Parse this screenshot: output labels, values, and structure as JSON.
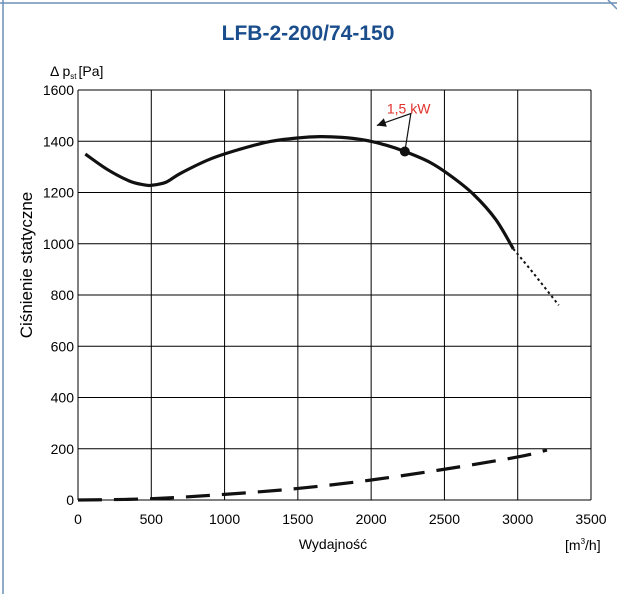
{
  "colors": {
    "title": "#1a4d8c",
    "frame_line": "#6b8fb5",
    "annotation": "#e0312b",
    "curve": "#111111",
    "grid": "#000000"
  },
  "chart_data": {
    "type": "line",
    "title": "LFB-2-200/74-150",
    "ylabel": "Ciśnienie statyczne",
    "ylabel_unit": {
      "prefix": "Δ p",
      "sub": "st",
      "suffix": "[Pa]"
    },
    "xlabel": "Wydajność",
    "xlabel_unit": {
      "prefix": "[m",
      "sup": "3",
      "suffix": "/h]"
    },
    "xlim": [
      0,
      3500
    ],
    "ylim": [
      0,
      1600
    ],
    "x_ticks": [
      0,
      500,
      1000,
      1500,
      2000,
      2500,
      3000,
      3500
    ],
    "y_ticks": [
      0,
      200,
      400,
      600,
      800,
      1000,
      1200,
      1400,
      1600
    ],
    "grid": true,
    "series": [
      {
        "style": "solid-thick",
        "x": [
          50,
          200,
          350,
          450,
          500,
          600,
          700,
          900,
          1100,
          1300,
          1500,
          1650,
          1800,
          1950,
          2100,
          2230,
          2400,
          2550,
          2700,
          2850,
          2970
        ],
        "y": [
          1350,
          1290,
          1245,
          1230,
          1228,
          1240,
          1275,
          1330,
          1368,
          1398,
          1413,
          1418,
          1415,
          1405,
          1385,
          1360,
          1318,
          1262,
          1192,
          1095,
          980
        ]
      },
      {
        "style": "dotted",
        "x": [
          2970,
          3100,
          3280
        ],
        "y": [
          980,
          890,
          760
        ]
      },
      {
        "style": "dashed",
        "x": [
          0,
          500,
          1000,
          1500,
          2000,
          2500,
          3000,
          3200
        ],
        "y": [
          0,
          5,
          22,
          45,
          78,
          120,
          168,
          195
        ]
      }
    ],
    "annotations": [
      {
        "text": "1,5 kW",
        "point_x": 2230,
        "point_y": 1360
      }
    ]
  }
}
